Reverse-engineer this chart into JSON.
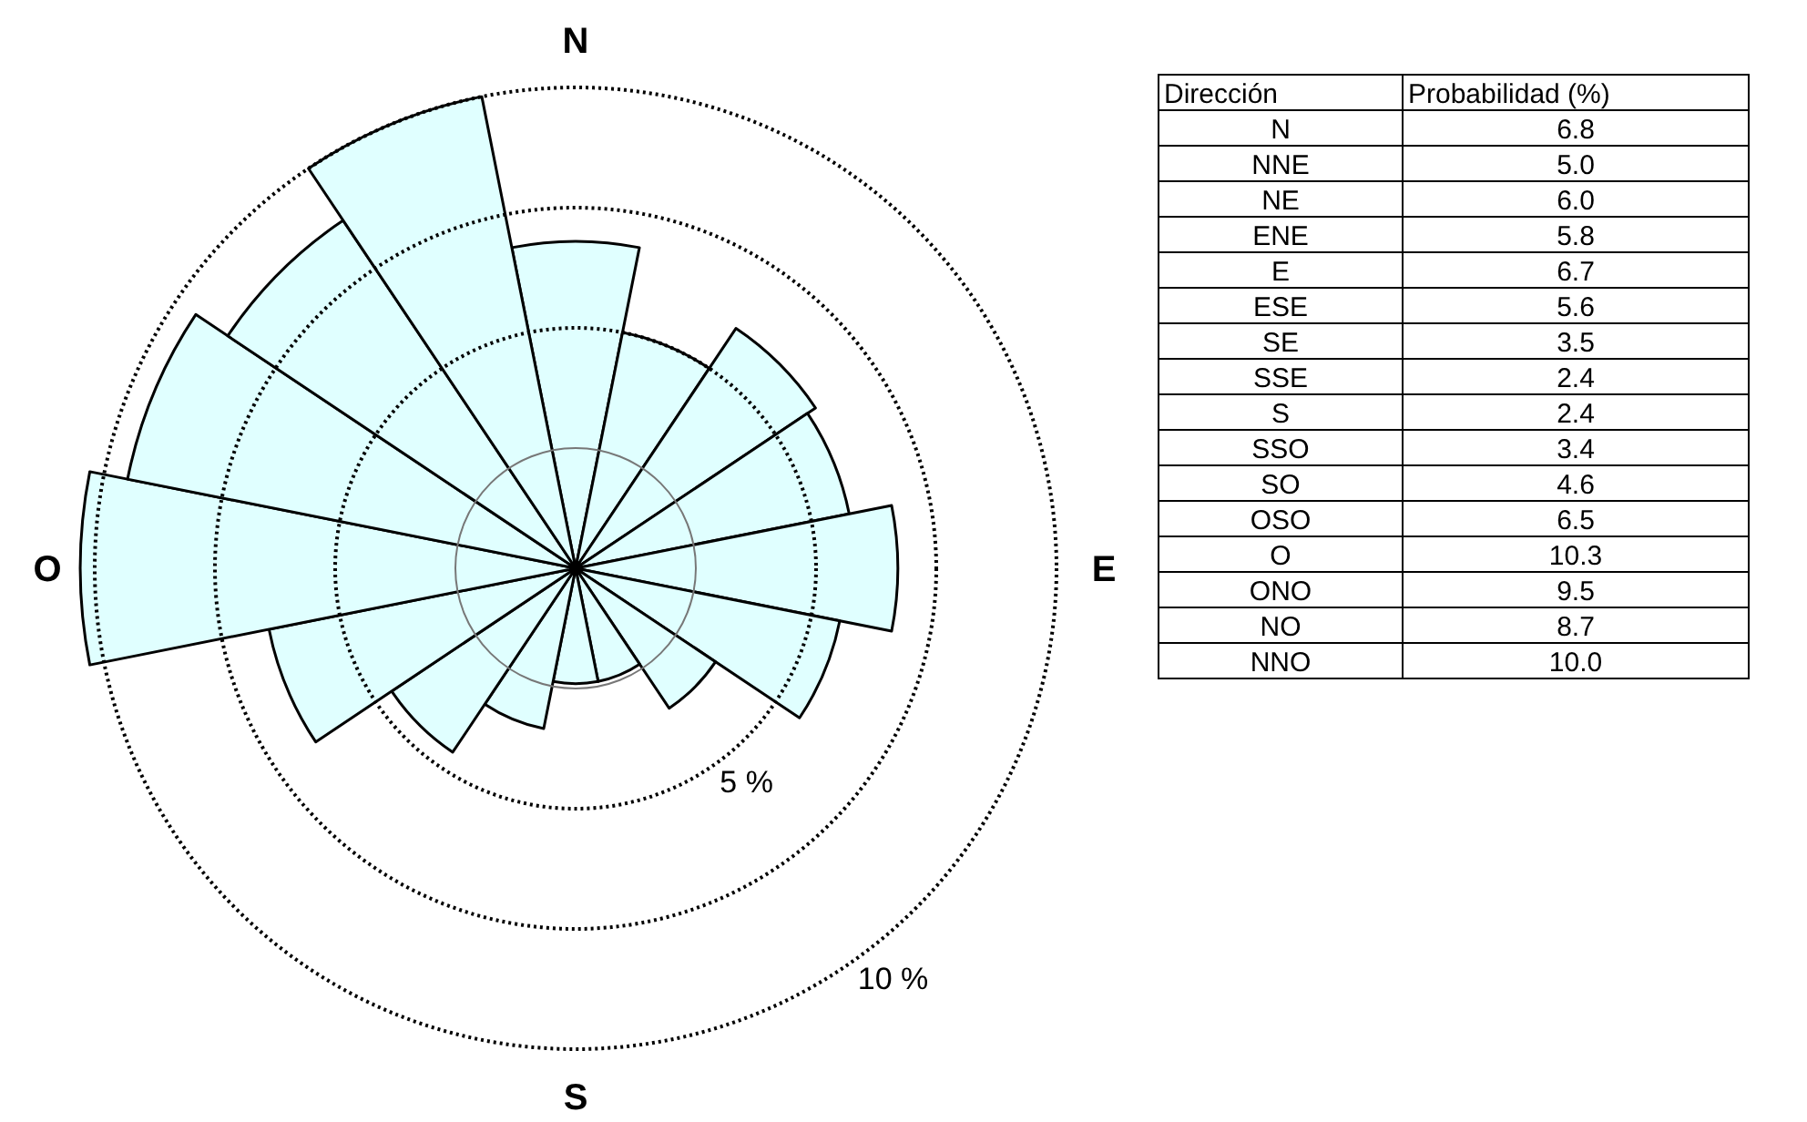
{
  "chart_data": {
    "type": "other",
    "xlabel": "Dirección",
    "ylabel": "Probabilidad (%)",
    "categories": [
      "N",
      "NNE",
      "NE",
      "ENE",
      "E",
      "ESE",
      "SE",
      "SSE",
      "S",
      "SSO",
      "SO",
      "OSO",
      "O",
      "ONO",
      "NO",
      "NNO"
    ],
    "values": [
      6.8,
      5.0,
      6.0,
      5.8,
      6.7,
      5.6,
      3.5,
      2.4,
      2.4,
      3.4,
      4.6,
      6.5,
      10.3,
      9.5,
      8.7,
      10.0
    ],
    "value_labels": [
      "6.8",
      "5.0",
      "6.0",
      "5.8",
      "6.7",
      "5.6",
      "3.5",
      "2.4",
      "2.4",
      "3.4",
      "4.6",
      "6.5",
      "10.3",
      "9.5",
      "8.7",
      "10.0"
    ],
    "color": "#e0ffff",
    "annotations": [
      "5 %",
      "10 %"
    ]
  }
}
